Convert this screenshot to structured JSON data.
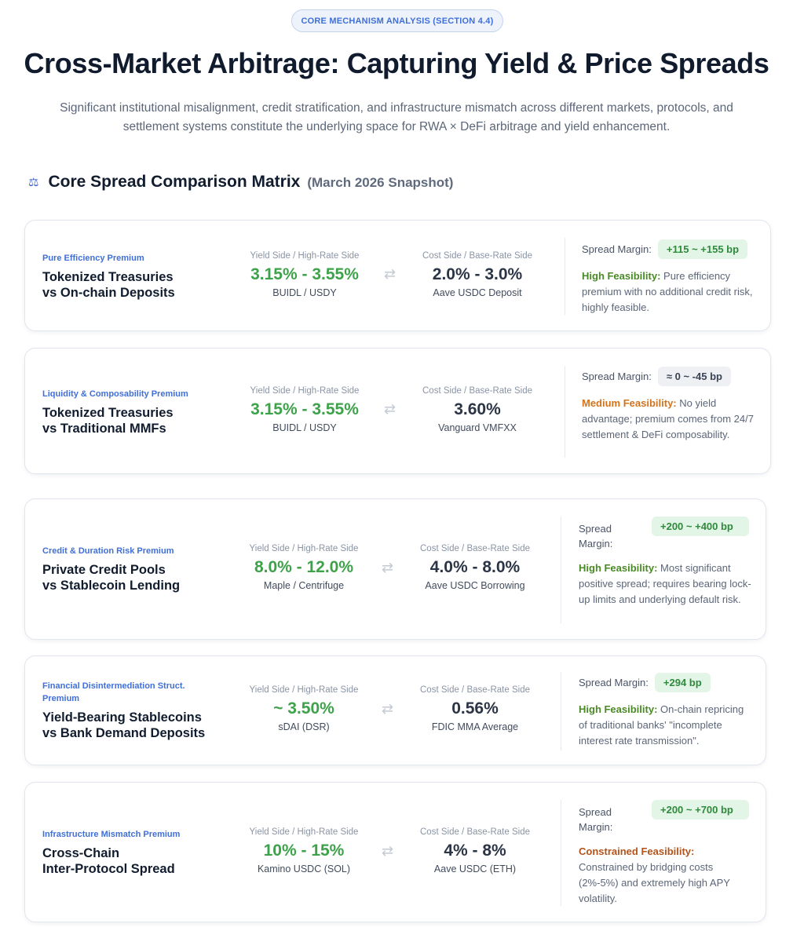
{
  "header": {
    "badge": "CORE MECHANISM ANALYSIS (SECTION 4.4)",
    "title": "Cross-Market Arbitrage: Capturing Yield & Price Spreads",
    "subtitle": "Significant institutional misalignment, credit stratification, and infrastructure mismatch across different markets, protocols, and settlement systems constitute the underlying space for RWA × DeFi arbitrage and yield enhancement."
  },
  "section": {
    "icon": "scale-icon",
    "icon_glyph": "⚖",
    "title": "Core Spread Comparison Matrix",
    "note": "(March 2026 Snapshot)"
  },
  "labels": {
    "yield_side": "Yield Side / High-Rate Side",
    "cost_side": "Cost Side / Base-Rate Side",
    "arrow_glyph": "⇄"
  },
  "colors": {
    "accent_blue": "#3f6fd8",
    "yield_green": "#3da24a",
    "pill_green_bg": "#e3f5e6",
    "feasibility_high": "#4a8a26",
    "feasibility_medium": "#d2731d",
    "feasibility_constrained": "#b3531a"
  },
  "cards": [
    {
      "category": "Pure Efficiency Premium",
      "name_line1": "Tokenized Treasuries",
      "name_line2": "vs On-chain Deposits",
      "yield_rate": "3.15% - 3.55%",
      "yield_source": "BUIDL / USDY",
      "cost_rate": "2.0% - 3.0%",
      "cost_source": "Aave USDC Deposit",
      "margin_label": "Spread Margin:",
      "margin_value": "+115 ~ +155 bp",
      "feasibility": "High Feasibility:",
      "description": "Pure efficiency premium with no additional credit risk, highly feasible."
    },
    {
      "category": "Liquidity & Composability Premium",
      "name_line1": "Tokenized Treasuries",
      "name_line2": "vs Traditional MMFs",
      "yield_rate": "3.15% - 3.55%",
      "yield_source": "BUIDL / USDY",
      "cost_rate": "3.60%",
      "cost_source": "Vanguard VMFXX",
      "margin_label": "Spread Margin:",
      "margin_value": "≈ 0 ~ -45 bp",
      "feasibility": "Medium Feasibility:",
      "description": "No yield advantage; premium comes from 24/7 settlement & DeFi composability."
    },
    {
      "category": "Credit & Duration Risk Premium",
      "name_line1": "Private Credit Pools",
      "name_line2": "vs Stablecoin Lending",
      "yield_rate": "8.0% - 12.0%",
      "yield_source": "Maple / Centrifuge",
      "cost_rate": "4.0% - 8.0%",
      "cost_source": "Aave USDC Borrowing",
      "margin_label": "Spread Margin:",
      "margin_value": "+200 ~ +400 bp",
      "feasibility": "High Feasibility:",
      "description": "Most significant positive spread; requires bearing lock-up limits and underlying default risk."
    },
    {
      "category": "Financial Disintermediation Struct. Premium",
      "name_line1": "Yield-Bearing Stablecoins",
      "name_line2": "vs Bank Demand Deposits",
      "yield_rate": "~ 3.50%",
      "yield_source": "sDAI (DSR)",
      "cost_rate": "0.56%",
      "cost_source": "FDIC MMA Average",
      "margin_label": "Spread Margin:",
      "margin_value": "+294 bp",
      "feasibility": "High Feasibility:",
      "description": "On-chain repricing of traditional banks' \"incomplete interest rate transmission\"."
    },
    {
      "category": "Infrastructure Mismatch Premium",
      "name_line1": "Cross-Chain",
      "name_line2": "Inter-Protocol Spread",
      "yield_rate": "10% - 15%",
      "yield_source": "Kamino USDC (SOL)",
      "cost_rate": "4% - 8%",
      "cost_source": "Aave USDC (ETH)",
      "margin_label": "Spread Margin:",
      "margin_value": "+200 ~ +700 bp",
      "feasibility": "Constrained Feasibility:",
      "description": "Constrained by bridging costs (2%-5%) and extremely high APY volatility."
    }
  ]
}
